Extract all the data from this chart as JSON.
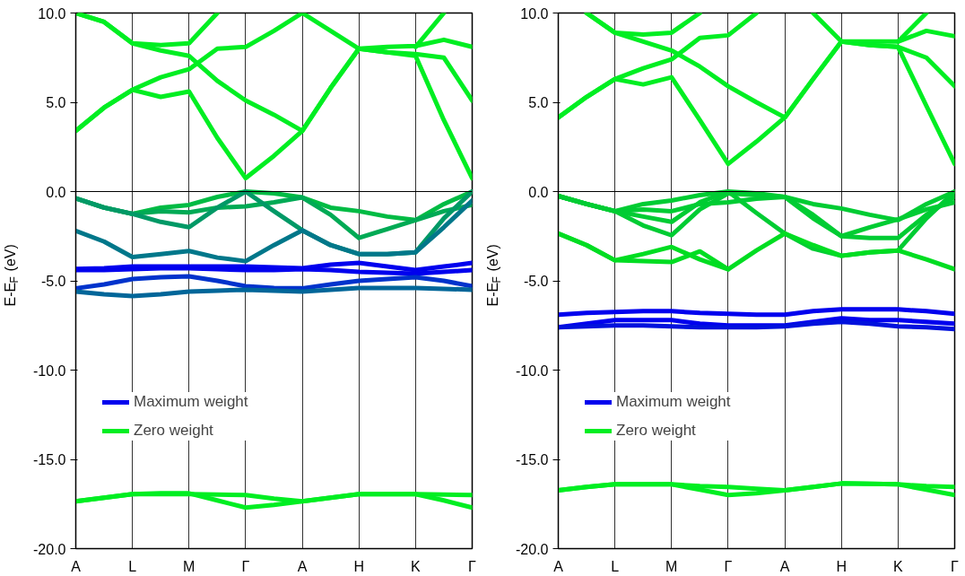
{
  "chart_data": [
    {
      "type": "line",
      "ylabel": "E-E$_{F}$ (eV)",
      "ylim": [
        -20,
        10
      ],
      "categories": [
        "A",
        null,
        "L",
        null,
        "M",
        null,
        "Γ",
        null,
        "A",
        null,
        "H",
        null,
        "K",
        null,
        "Γ"
      ],
      "yticks": [
        {
          "value": -20,
          "label": "-20.0"
        },
        {
          "value": -15,
          "label": "-15.0"
        },
        {
          "value": -10,
          "label": "-10.0"
        },
        {
          "value": -5,
          "label": "-5.0"
        },
        {
          "value": 0,
          "label": "0.0"
        },
        {
          "value": 5,
          "label": "5.0"
        },
        {
          "value": 10,
          "label": "10.0"
        }
      ],
      "grid": "x",
      "legend": "bottom left",
      "marker": "none",
      "line_style": "solid",
      "ref_lines": [
        {
          "axis": "y",
          "value": 0,
          "label": null
        }
      ],
      "series": [
        {
          "color": "#00ee22",
          "values": [
            3.4,
            4.7,
            5.7,
            5.3,
            5.6,
            3.0,
            0.75,
            2.0,
            3.4,
            5.8,
            8.0,
            7.8,
            7.6,
            4.0,
            0.75
          ]
        },
        {
          "color": "#00ee22",
          "values": [
            3.4,
            4.7,
            5.7,
            6.4,
            6.85,
            8.0,
            8.1,
            9.0,
            10.0,
            9.0,
            8.0,
            8.1,
            8.15,
            8.5,
            8.1
          ]
        },
        {
          "color": "#00ee22",
          "values": [
            10.0,
            9.5,
            8.3,
            7.9,
            7.6,
            6.2,
            5.1,
            4.3,
            3.4,
            5.8,
            8.0,
            7.8,
            7.7,
            7.5,
            5.1
          ]
        },
        {
          "color": "#00ee22",
          "values": [
            10.0,
            9.5,
            8.3,
            8.2,
            8.3,
            10.0,
            null,
            null,
            null,
            null,
            null,
            null,
            null,
            null,
            null
          ]
        },
        {
          "color": "#00ee22",
          "values": [
            null,
            null,
            null,
            null,
            null,
            null,
            null,
            null,
            null,
            null,
            null,
            null,
            8.1,
            10.0,
            null
          ]
        },
        {
          "color": "#00bb44",
          "values": [
            -0.38,
            -0.9,
            -1.25,
            -0.9,
            -0.75,
            -0.3,
            0,
            -0.1,
            -0.33,
            -0.9,
            -1.1,
            -1.4,
            -1.6,
            -0.7,
            0
          ]
        },
        {
          "color": "#00aa55",
          "values": [
            -0.38,
            -0.9,
            -1.25,
            -1.1,
            -1.17,
            -0.9,
            -0.83,
            -0.6,
            -0.33,
            -1.3,
            -2.6,
            -2.1,
            -1.6,
            -1.1,
            -0.75
          ]
        },
        {
          "color": "#009966",
          "values": [
            -0.38,
            -0.9,
            -1.25,
            -1.7,
            -2.0,
            -0.9,
            0,
            -1.1,
            -2.17,
            -3.0,
            -3.5,
            -3.5,
            -3.4,
            -1.5,
            0
          ]
        },
        {
          "color": "#00778a",
          "values": [
            -2.2,
            -2.8,
            -3.67,
            -3.5,
            -3.33,
            -3.7,
            -3.9,
            -3.0,
            -2.17,
            -3.0,
            -3.5,
            -3.5,
            -3.4,
            -2.0,
            -0.5
          ]
        },
        {
          "name": "Maximum weight",
          "color": "#0000ee",
          "values": [
            -4.33,
            -4.3,
            -4.2,
            -4.2,
            -4.2,
            -4.2,
            -4.2,
            -4.25,
            -4.3,
            -4.1,
            -4.0,
            -4.2,
            -4.4,
            -4.2,
            -4.0
          ]
        },
        {
          "color": "#0000ee",
          "values": [
            -4.4,
            -4.4,
            -4.35,
            -4.3,
            -4.3,
            -4.35,
            -4.4,
            -4.4,
            -4.35,
            -4.4,
            -4.5,
            -4.55,
            -4.6,
            -4.5,
            -4.4
          ]
        },
        {
          "color": "#0033cc",
          "values": [
            -5.42,
            -5.2,
            -4.9,
            -4.8,
            -4.75,
            -5.0,
            -5.3,
            -5.4,
            -5.42,
            -5.2,
            -5.0,
            -4.9,
            -4.8,
            -5.0,
            -5.3
          ]
        },
        {
          "color": "#006699",
          "values": [
            -5.6,
            -5.75,
            -5.85,
            -5.75,
            -5.6,
            -5.55,
            -5.5,
            -5.55,
            -5.6,
            -5.5,
            -5.4,
            -5.4,
            -5.4,
            -5.45,
            -5.5
          ]
        },
        {
          "name": "Zero weight",
          "color": "#00ee22",
          "values": [
            -17.35,
            -17.15,
            -16.95,
            -16.95,
            -16.95,
            -16.97,
            -17.0,
            -17.2,
            -17.35,
            -17.15,
            -16.95,
            -16.95,
            -16.95,
            -16.97,
            -17.0
          ]
        },
        {
          "color": "#00ee22",
          "values": [
            -17.35,
            -17.15,
            -16.95,
            -16.9,
            -16.9,
            -17.3,
            -17.7,
            -17.55,
            -17.35,
            -17.15,
            -16.95,
            -16.95,
            -16.95,
            -17.3,
            -17.7
          ]
        }
      ]
    },
    {
      "type": "line",
      "ylabel": "E-E$_{F}$ (eV)",
      "ylim": [
        -20,
        10
      ],
      "categories": [
        "A",
        null,
        "L",
        null,
        "M",
        null,
        "Γ",
        null,
        "A",
        null,
        "H",
        null,
        "K",
        null,
        "Γ"
      ],
      "yticks": [
        {
          "value": -20,
          "label": "-20.0"
        },
        {
          "value": -15,
          "label": "-15.0"
        },
        {
          "value": -10,
          "label": "-10.0"
        },
        {
          "value": -5,
          "label": "-5.0"
        },
        {
          "value": 0,
          "label": "0.0"
        },
        {
          "value": 5,
          "label": "5.0"
        },
        {
          "value": 10,
          "label": "10.0"
        }
      ],
      "grid": "x",
      "legend": "bottom left",
      "marker": "none",
      "line_style": "solid",
      "ref_lines": [
        {
          "axis": "y",
          "value": 0,
          "label": null
        }
      ],
      "series": [
        {
          "color": "#00ee22",
          "values": [
            4.15,
            5.3,
            6.3,
            6.0,
            6.4,
            4.0,
            1.55,
            2.8,
            4.15,
            6.3,
            8.4,
            8.2,
            8.1,
            4.8,
            1.55
          ]
        },
        {
          "color": "#00ee22",
          "values": [
            4.15,
            5.3,
            6.3,
            6.9,
            7.4,
            8.6,
            8.75,
            10.0,
            null,
            null,
            null,
            null,
            null,
            null,
            null
          ]
        },
        {
          "color": "#00ee22",
          "values": [
            null,
            null,
            null,
            null,
            null,
            null,
            null,
            null,
            null,
            10.0,
            8.4,
            8.4,
            8.4,
            9.0,
            8.7
          ]
        },
        {
          "color": "#00ee22",
          "values": [
            null,
            10.0,
            8.9,
            8.4,
            7.9,
            7.0,
            5.9,
            5.0,
            4.15,
            6.3,
            8.4,
            8.2,
            8.1,
            7.5,
            5.9
          ]
        },
        {
          "color": "#00ee22",
          "values": [
            null,
            10.0,
            8.9,
            8.8,
            8.9,
            10.0,
            null,
            null,
            null,
            null,
            null,
            null,
            null,
            null,
            null
          ]
        },
        {
          "color": "#00ee22",
          "values": [
            null,
            null,
            null,
            null,
            null,
            null,
            null,
            null,
            null,
            null,
            null,
            null,
            8.4,
            10.0,
            null
          ]
        },
        {
          "color": "#00cc33",
          "values": [
            -0.25,
            -0.7,
            -1.1,
            -0.7,
            -0.5,
            -0.2,
            0,
            -0.1,
            -0.3,
            -0.7,
            -0.95,
            -1.3,
            -1.6,
            -0.7,
            0
          ]
        },
        {
          "color": "#00cc33",
          "values": [
            -0.25,
            -0.7,
            -1.1,
            -1.0,
            -1.1,
            -0.7,
            -0.6,
            -0.4,
            -0.3,
            -1.3,
            -2.5,
            -2.0,
            -1.55,
            -1.0,
            -0.6
          ]
        },
        {
          "color": "#00cc33",
          "values": [
            -0.25,
            -0.7,
            -1.1,
            -1.4,
            -1.7,
            -0.6,
            0,
            -1.2,
            -2.35,
            -3.2,
            -3.6,
            -3.4,
            -3.3,
            -1.5,
            0
          ]
        },
        {
          "color": "#00cc33",
          "values": [
            -0.25,
            -0.7,
            -1.1,
            -1.9,
            -2.45,
            -1.0,
            -0.1,
            -0.2,
            -0.3,
            -1.5,
            -2.5,
            -2.6,
            -2.6,
            -1.3,
            -0.3
          ]
        },
        {
          "color": "#00dd22",
          "values": [
            -2.35,
            -3.0,
            -3.85,
            -3.5,
            -3.1,
            -3.8,
            -4.35,
            -3.3,
            -2.35,
            -3.0,
            -3.6,
            -3.4,
            -3.3,
            -3.8,
            -4.35
          ]
        },
        {
          "color": "#00dd22",
          "values": [
            -2.35,
            -3.0,
            -3.85,
            -3.9,
            -3.95,
            -3.35,
            -4.35,
            null,
            null,
            null,
            null,
            null,
            null,
            null,
            null
          ]
        },
        {
          "name": "Maximum weight",
          "color": "#0000ee",
          "values": [
            -6.9,
            -6.8,
            -6.75,
            -6.7,
            -6.7,
            -6.8,
            -6.85,
            -6.9,
            -6.9,
            -6.7,
            -6.6,
            -6.6,
            -6.6,
            -6.7,
            -6.85
          ]
        },
        {
          "color": "#0000ee",
          "values": [
            -7.6,
            -7.4,
            -7.2,
            -7.2,
            -7.2,
            -7.4,
            -7.5,
            -7.5,
            -7.5,
            -7.3,
            -7.1,
            -7.2,
            -7.2,
            -7.3,
            -7.4
          ]
        },
        {
          "color": "#0011dd",
          "values": [
            -7.6,
            -7.55,
            -7.5,
            -7.5,
            -7.55,
            -7.6,
            -7.6,
            -7.6,
            -7.55,
            -7.4,
            -7.3,
            -7.4,
            -7.55,
            -7.6,
            -7.7
          ]
        },
        {
          "name": "Zero weight",
          "color": "#00ee22",
          "values": [
            -16.73,
            -16.55,
            -16.4,
            -16.4,
            -16.4,
            -16.5,
            -16.55,
            -16.65,
            -16.73,
            -16.55,
            -16.35,
            -16.37,
            -16.4,
            -16.5,
            -16.55
          ]
        },
        {
          "color": "#00ee22",
          "values": [
            -16.73,
            -16.55,
            -16.4,
            -16.4,
            -16.4,
            -16.7,
            -17.0,
            -16.9,
            -16.73,
            -16.55,
            -16.35,
            -16.37,
            -16.4,
            -16.7,
            -17.0
          ]
        }
      ]
    }
  ]
}
